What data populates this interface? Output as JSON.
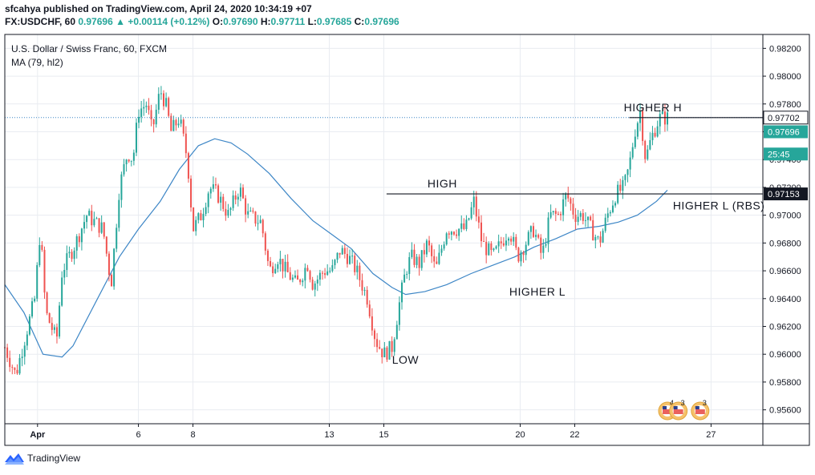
{
  "header": {
    "line1": "sfcahya published on TradingView.com, April 24, 2020 10:34:19 +07",
    "symbol": "FX:USDCHF, 60",
    "last": "0.97696",
    "change": "+0.00114 (+0.12%)",
    "o_label": "O:",
    "o_val": "0.97690",
    "h_label": "H:",
    "h_val": "0.97711",
    "l_label": "L:",
    "l_val": "0.97685",
    "c_label": "C:",
    "c_val": "0.97696"
  },
  "legend": {
    "title": "U.S. Dollar / Swiss Franc, 60, FXCM",
    "ma": "MA (79, hl2)"
  },
  "footer": {
    "brand": "TradingView"
  },
  "colors": {
    "up": "#26a69a",
    "down": "#ef5350",
    "ma": "#3d86c6",
    "grid": "#e9ecf1",
    "price_tag": "#26a69a"
  },
  "chart_data": {
    "type": "candlestick",
    "title": "U.S. Dollar / Swiss Franc, 60, FXCM",
    "ylim": [
      0.955,
      0.983
    ],
    "y_ticks": [
      "0.98200",
      "0.98000",
      "0.97800",
      "0.97600",
      "0.97400",
      "0.97200",
      "0.97000",
      "0.96800",
      "0.96600",
      "0.96400",
      "0.96200",
      "0.96000",
      "0.95800",
      "0.95600"
    ],
    "x_ticks": [
      {
        "label": "Apr",
        "x": 2.3
      },
      {
        "label": "6",
        "x": 6.0
      },
      {
        "label": "8",
        "x": 8.0
      },
      {
        "label": "13",
        "x": 13.0
      },
      {
        "label": "15",
        "x": 15.0
      },
      {
        "label": "20",
        "x": 20.0
      },
      {
        "label": "22",
        "x": 22.0
      },
      {
        "label": "27",
        "x": 27.0
      }
    ],
    "xlim": [
      1.1,
      28.9
    ],
    "price_path": [
      [
        1.1,
        0.9605
      ],
      [
        1.5,
        0.9585
      ],
      [
        2.2,
        0.964
      ],
      [
        2.4,
        0.969
      ],
      [
        2.6,
        0.963
      ],
      [
        3.0,
        0.961
      ],
      [
        3.2,
        0.966
      ],
      [
        3.7,
        0.968
      ],
      [
        4.1,
        0.97
      ],
      [
        4.7,
        0.969
      ],
      [
        5.0,
        0.965
      ],
      [
        5.3,
        0.972
      ],
      [
        5.6,
        0.9745
      ],
      [
        5.8,
        0.974
      ],
      [
        6.0,
        0.9775
      ],
      [
        6.3,
        0.978
      ],
      [
        6.5,
        0.976
      ],
      [
        6.8,
        0.979
      ],
      [
        7.0,
        0.978
      ],
      [
        7.2,
        0.976
      ],
      [
        7.5,
        0.977
      ],
      [
        7.8,
        0.974
      ],
      [
        8.0,
        0.969
      ],
      [
        8.3,
        0.97
      ],
      [
        8.6,
        0.972
      ],
      [
        8.9,
        0.9715
      ],
      [
        9.3,
        0.97
      ],
      [
        9.7,
        0.972
      ],
      [
        10.0,
        0.97
      ],
      [
        10.5,
        0.9695
      ],
      [
        10.8,
        0.966
      ],
      [
        11.1,
        0.967
      ],
      [
        11.4,
        0.966
      ],
      [
        11.8,
        0.965
      ],
      [
        12.2,
        0.9665
      ],
      [
        12.4,
        0.965
      ],
      [
        12.8,
        0.966
      ],
      [
        13.1,
        0.966
      ],
      [
        13.4,
        0.9675
      ],
      [
        13.7,
        0.967
      ],
      [
        14.0,
        0.966
      ],
      [
        14.4,
        0.964
      ],
      [
        14.7,
        0.961
      ],
      [
        15.0,
        0.96
      ],
      [
        15.3,
        0.9605
      ],
      [
        15.6,
        0.964
      ],
      [
        15.8,
        0.966
      ],
      [
        16.0,
        0.967
      ],
      [
        16.3,
        0.9665
      ],
      [
        16.6,
        0.968
      ],
      [
        16.9,
        0.966
      ],
      [
        17.3,
        0.969
      ],
      [
        17.6,
        0.969
      ],
      [
        18.0,
        0.969
      ],
      [
        18.3,
        0.971
      ],
      [
        18.6,
        0.968
      ],
      [
        19.0,
        0.967
      ],
      [
        19.3,
        0.968
      ],
      [
        19.6,
        0.969
      ],
      [
        19.9,
        0.967
      ],
      [
        20.2,
        0.968
      ],
      [
        20.5,
        0.969
      ],
      [
        20.8,
        0.967
      ],
      [
        21.1,
        0.97
      ],
      [
        21.4,
        0.97
      ],
      [
        21.7,
        0.9715
      ],
      [
        22.0,
        0.97
      ],
      [
        22.3,
        0.97
      ],
      [
        22.6,
        0.969
      ],
      [
        22.9,
        0.968
      ],
      [
        23.2,
        0.97
      ],
      [
        23.5,
        0.9715
      ],
      [
        23.8,
        0.972
      ],
      [
        24.0,
        0.9735
      ],
      [
        24.2,
        0.976
      ],
      [
        24.4,
        0.9775
      ],
      [
        24.6,
        0.974
      ],
      [
        24.8,
        0.9755
      ],
      [
        25.1,
        0.977
      ],
      [
        25.4,
        0.977
      ]
    ],
    "ma_series": [
      [
        1.1,
        0.965
      ],
      [
        1.8,
        0.963
      ],
      [
        2.5,
        0.96
      ],
      [
        3.2,
        0.9598
      ],
      [
        3.6,
        0.9606
      ],
      [
        4.5,
        0.964
      ],
      [
        5.3,
        0.967
      ],
      [
        6.0,
        0.969
      ],
      [
        6.8,
        0.971
      ],
      [
        7.5,
        0.9733
      ],
      [
        8.2,
        0.975
      ],
      [
        8.8,
        0.9755
      ],
      [
        9.4,
        0.9752
      ],
      [
        10.0,
        0.9744
      ],
      [
        10.8,
        0.973
      ],
      [
        11.6,
        0.9712
      ],
      [
        12.4,
        0.9696
      ],
      [
        13.1,
        0.9686
      ],
      [
        13.8,
        0.9676
      ],
      [
        14.6,
        0.9658
      ],
      [
        15.3,
        0.9648
      ],
      [
        15.8,
        0.9643
      ],
      [
        16.5,
        0.9645
      ],
      [
        17.3,
        0.965
      ],
      [
        18.2,
        0.9658
      ],
      [
        19.0,
        0.9664
      ],
      [
        19.8,
        0.967
      ],
      [
        20.5,
        0.9677
      ],
      [
        21.3,
        0.9683
      ],
      [
        22.1,
        0.969
      ],
      [
        22.9,
        0.9692
      ],
      [
        23.6,
        0.9695
      ],
      [
        24.3,
        0.97
      ],
      [
        25.0,
        0.971
      ],
      [
        25.4,
        0.9718
      ]
    ],
    "levels": [
      {
        "label": "HIGHER H",
        "price": 0.97702,
        "x_from": 24.0,
        "text_x": 23.8
      },
      {
        "label": "HIGH",
        "price": 0.97153,
        "x_from": 15.1,
        "text_x": 16.6
      }
    ],
    "annotations": [
      {
        "label": "LOW",
        "x": 15.3,
        "price": 0.9596
      },
      {
        "label": "HIGHER L",
        "x": 19.6,
        "price": 0.9645
      },
      {
        "label": "HIGHER L (RBS)",
        "x": 25.6,
        "price": 0.9707
      }
    ],
    "price_scale_tags": [
      {
        "label": "0.97702",
        "price": 0.97702,
        "style": "dark-outline"
      },
      {
        "label": "0.97696",
        "price": 0.976,
        "style": "teal"
      },
      {
        "label": "25:45",
        "price": 0.9744,
        "style": "teal"
      },
      {
        "label": "0.97153",
        "price": 0.97153,
        "style": "dark"
      }
    ],
    "events": [
      {
        "x": 25.4,
        "count": "4"
      },
      {
        "x": 25.8,
        "count": "3"
      },
      {
        "x": 26.6,
        "count": "3"
      }
    ]
  }
}
